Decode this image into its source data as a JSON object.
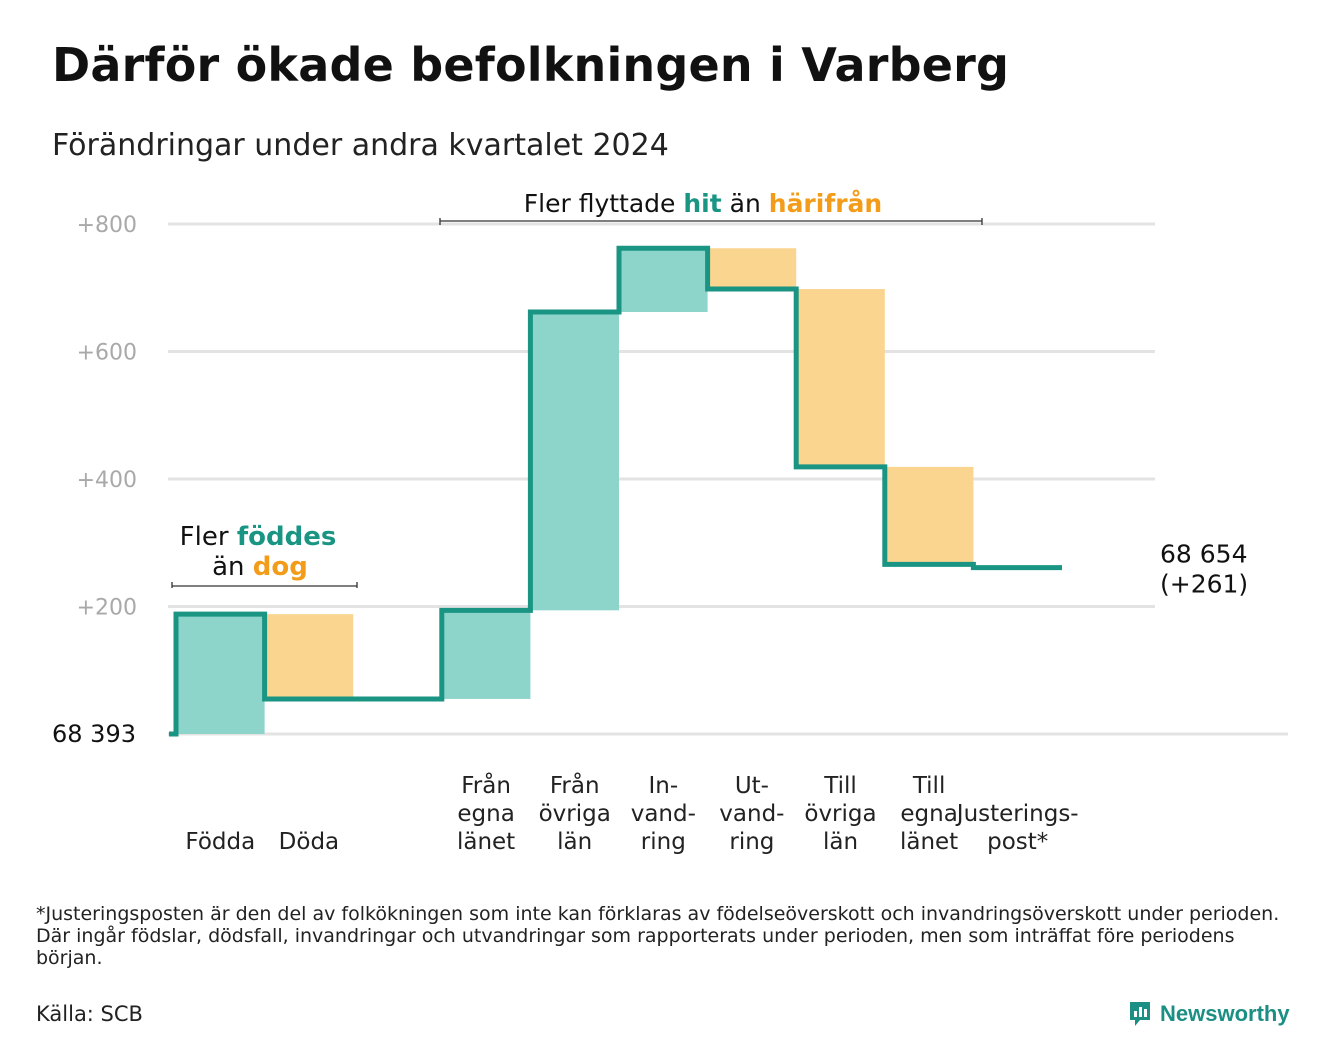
{
  "title": "Därför ökade befolkningen i Varberg",
  "subtitle": "Förändringar under andra kvartalet 2024",
  "colors": {
    "teal": "#1a9583",
    "teal_fill": "#8dd4cb",
    "orange": "#f29c1a",
    "orange_fill": "#fad58f",
    "grid": "#e3e3e3"
  },
  "chart_data": {
    "type": "waterfall",
    "baseline_value": 68393,
    "baseline_label": "68  393",
    "end_label": [
      "68 654",
      "(+261)"
    ],
    "ylim": [
      0,
      800
    ],
    "yticks": [
      200,
      400,
      600,
      800
    ],
    "ytick_labels": [
      "+200",
      "+400",
      "+600",
      "+800"
    ],
    "categories": [
      {
        "label": [
          "Födda"
        ],
        "from": 0,
        "to": 188,
        "kind": "inflow"
      },
      {
        "label": [
          "Döda"
        ],
        "from": 188,
        "to": 55,
        "kind": "outflow"
      },
      {
        "label": [],
        "from": 55,
        "to": 55,
        "kind": "none"
      },
      {
        "label": [
          "Från",
          "egna",
          "länet"
        ],
        "from": 55,
        "to": 194,
        "kind": "inflow"
      },
      {
        "label": [
          "Från",
          "övriga",
          "län"
        ],
        "from": 194,
        "to": 662,
        "kind": "inflow"
      },
      {
        "label": [
          "In-",
          "vand-",
          "ring"
        ],
        "from": 662,
        "to": 762,
        "kind": "inflow"
      },
      {
        "label": [
          "Ut-",
          "vand-",
          "ring"
        ],
        "from": 762,
        "to": 698,
        "kind": "outflow"
      },
      {
        "label": [
          "Till",
          "övriga",
          "län"
        ],
        "from": 698,
        "to": 419,
        "kind": "outflow"
      },
      {
        "label": [
          "Till",
          "egna",
          "länet"
        ],
        "from": 419,
        "to": 266,
        "kind": "outflow"
      },
      {
        "label": [
          "Justerings-",
          "post*"
        ],
        "from": 266,
        "to": 261,
        "kind": "adjustment"
      }
    ],
    "annotations": [
      {
        "lines": [
          [
            "Fler ",
            "föddes",
            ""
          ],
          [
            "än ",
            "dog",
            ""
          ]
        ],
        "spans": [
          0,
          1
        ]
      },
      {
        "lines": [
          [
            "Fler flyttade ",
            "hit",
            " än ",
            "härifrån"
          ]
        ],
        "spans": [
          3,
          8
        ]
      }
    ]
  },
  "footnote": "*Justeringsposten är den del av folkökningen som inte kan förklaras av födelseöverskott och invandringsöverskott under perioden. Där ingår födslar, dödsfall, invandringar och utvandringar som rapporterats under perioden, men som inträffat före periodens början.",
  "source": "Källa: SCB",
  "brand": "Newsworthy"
}
